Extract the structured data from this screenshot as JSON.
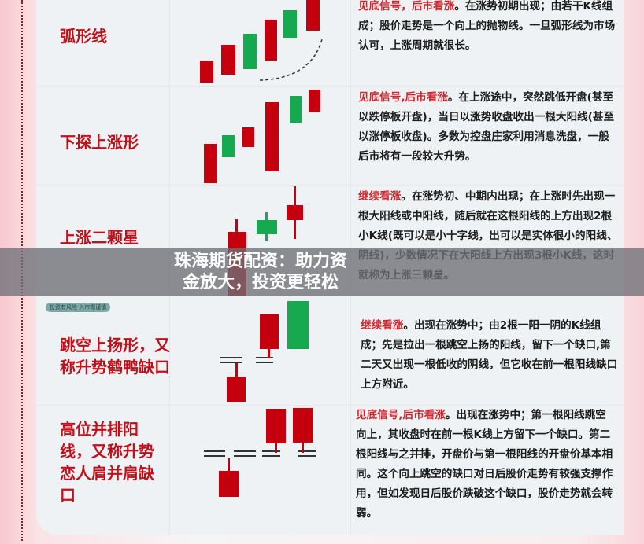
{
  "banner": "珠海期货配资：助力资金放大，投资更轻松",
  "badge": "投资有风险 入市需谨慎",
  "colors": {
    "bullish": "#c4000e",
    "bearish": "#16a94f",
    "label": "#c2101a",
    "highlight": "#d0262d"
  },
  "patterns": [
    {
      "name": "弧形线",
      "signal": "见底信号，后市看涨",
      "text": "。在涨势初期出现；由若干K线组成；股价走势是一个向上的抛物线。一旦弧形线为市场认可，上涨周期就很长。"
    },
    {
      "name": "下探上涨形",
      "signal": "见底信号,后市看涨",
      "text": "。在上涨途中，突然跳低开盘(甚至以跌停板开盘)，当日以涨势收盘收出一根大阳线(甚至以涨停板收盘)。多数为控盘庄家利用消息洗盘，一般后市将有一段较大升势。"
    },
    {
      "name": "上涨二颗星",
      "signal": "继续看涨",
      "text": "。在涨势初、中期内出现；在上涨时先出现一根大阳线或中阳线，随后就在这根阳线的上方出现2根小K线(既可以是小十字线，出可以是实体很小的阳线、阴线)，少数情况下在大阳线上方出现3根小K线，这时就称为上涨三颗星。"
    },
    {
      "name": "跳空上扬形，又称升势鹤鸭缺口",
      "signal": "继续看涨",
      "text": "。出现在涨势中；由2根一阳一阴的K线组成；先是拉出一根跳空上扬的阳线，留下一个缺口,第二天又出现一根低收的阴线，但它收在前一根阳线缺口上方附近。"
    },
    {
      "name": "高位并排阳线，又称升势恋人肩并肩缺口",
      "signal": "见底信号,后市看涨",
      "text": "。出现在涨势中；第一根阳线跳空向上，其收盘时在前一根K线上方留下一个缺口。第二根阳线与之并排，开盘价与第一根阳线的开盘价基本相同。这个向上跳空的缺口对日后股价走势有较强支撑作用，但如发现日后股价跌破这个缺口，股价走势就会转弱。"
    }
  ]
}
